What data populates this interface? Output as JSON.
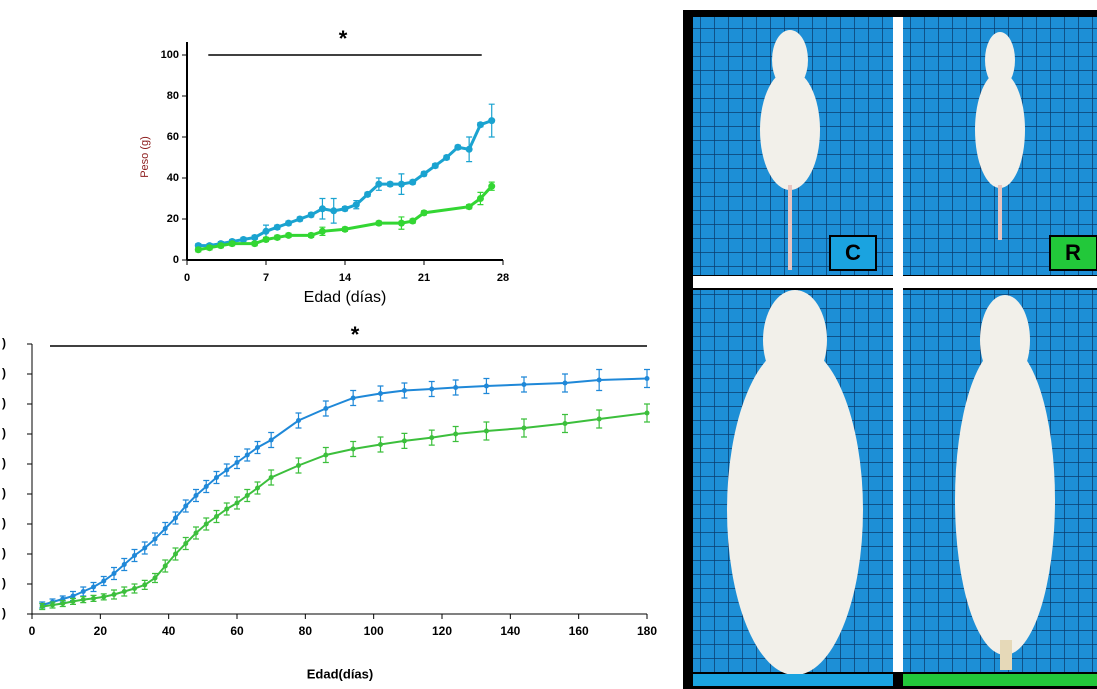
{
  "chart_data": [
    {
      "type": "line",
      "annotation": "*",
      "y_label": "Peso (g)",
      "x_label": "Edad (días)",
      "xlim": [
        0,
        28
      ],
      "xticks": [
        0,
        7,
        14,
        21,
        28
      ],
      "ylim": [
        0,
        100
      ],
      "yticks": [
        0,
        20,
        40,
        60,
        80,
        100
      ],
      "series": [
        {
          "color": "#1aa3d0",
          "x": [
            1,
            2,
            3,
            4,
            5,
            6,
            7,
            8,
            9,
            10,
            11,
            12,
            13,
            14,
            15,
            16,
            17,
            18,
            19,
            20,
            21,
            22,
            23,
            24,
            25,
            26,
            27
          ],
          "values": [
            7,
            7,
            8,
            9,
            10,
            11,
            14,
            16,
            18,
            20,
            22,
            25,
            24,
            25,
            27,
            32,
            37,
            37,
            37,
            38,
            42,
            46,
            50,
            55,
            54,
            66,
            68
          ],
          "errors": [
            1,
            1,
            1,
            1,
            1,
            1,
            3,
            1,
            1,
            1,
            1,
            5,
            6,
            1,
            2,
            1,
            3,
            1,
            5,
            1,
            1,
            1,
            1,
            1,
            6,
            1,
            8
          ]
        },
        {
          "color": "#33d633",
          "x": [
            1,
            2,
            3,
            4,
            6,
            7,
            8,
            9,
            11,
            12,
            14,
            17,
            19,
            20,
            21,
            25,
            26,
            27
          ],
          "values": [
            5,
            6,
            7,
            8,
            8,
            10,
            11,
            12,
            12,
            14,
            15,
            18,
            18,
            19,
            23,
            26,
            30,
            36
          ],
          "errors": [
            1,
            1,
            1,
            1,
            1,
            1,
            1,
            1,
            1,
            2,
            1,
            1,
            3,
            1,
            1,
            1,
            3,
            2
          ]
        }
      ]
    },
    {
      "type": "line",
      "annotation": "*",
      "x_label": "Edad(días)",
      "xlim": [
        0,
        180
      ],
      "xticks": [
        0,
        20,
        40,
        60,
        80,
        100,
        120,
        140,
        160,
        180
      ],
      "ylim": [
        0,
        9
      ],
      "yticks": [
        {
          "value": 0,
          "label": ")"
        },
        {
          "value": 1,
          "label": ")"
        },
        {
          "value": 2,
          "label": ")"
        },
        {
          "value": 3,
          "label": ")"
        },
        {
          "value": 4,
          "label": ")"
        },
        {
          "value": 5,
          "label": ")"
        },
        {
          "value": 6,
          "label": ")"
        },
        {
          "value": 7,
          "label": ")"
        },
        {
          "value": 8,
          "label": ")"
        },
        {
          "value": 9,
          "label": ")"
        }
      ],
      "series": [
        {
          "color": "#1f88d8",
          "x": [
            3,
            6,
            9,
            12,
            15,
            18,
            21,
            24,
            27,
            30,
            33,
            36,
            39,
            42,
            45,
            48,
            51,
            54,
            57,
            60,
            63,
            66,
            70,
            78,
            86,
            94,
            102,
            109,
            117,
            124,
            133,
            144,
            156,
            166,
            180
          ],
          "values": [
            0.3,
            0.4,
            0.5,
            0.6,
            0.75,
            0.9,
            1.1,
            1.35,
            1.65,
            1.95,
            2.2,
            2.5,
            2.85,
            3.2,
            3.6,
            3.95,
            4.25,
            4.55,
            4.8,
            5.05,
            5.3,
            5.55,
            5.8,
            6.45,
            6.85,
            7.2,
            7.35,
            7.45,
            7.5,
            7.55,
            7.6,
            7.65,
            7.7,
            7.8,
            7.85
          ],
          "errors": [
            0.1,
            0.1,
            0.1,
            0.15,
            0.15,
            0.15,
            0.15,
            0.2,
            0.2,
            0.2,
            0.2,
            0.2,
            0.2,
            0.2,
            0.2,
            0.2,
            0.2,
            0.2,
            0.2,
            0.2,
            0.2,
            0.2,
            0.25,
            0.25,
            0.25,
            0.25,
            0.25,
            0.25,
            0.25,
            0.25,
            0.25,
            0.25,
            0.3,
            0.35,
            0.3
          ]
        },
        {
          "color": "#3cbf3c",
          "x": [
            3,
            6,
            9,
            12,
            15,
            18,
            21,
            24,
            27,
            30,
            33,
            36,
            39,
            42,
            45,
            48,
            51,
            54,
            57,
            60,
            63,
            66,
            70,
            78,
            86,
            94,
            102,
            109,
            117,
            124,
            133,
            144,
            156,
            166,
            180
          ],
          "values": [
            0.25,
            0.3,
            0.35,
            0.42,
            0.48,
            0.52,
            0.57,
            0.65,
            0.75,
            0.85,
            0.97,
            1.2,
            1.6,
            2.0,
            2.35,
            2.7,
            3.0,
            3.25,
            3.5,
            3.7,
            3.95,
            4.2,
            4.55,
            4.95,
            5.3,
            5.5,
            5.65,
            5.77,
            5.88,
            6.0,
            6.1,
            6.2,
            6.35,
            6.5,
            6.7
          ],
          "errors": [
            0.1,
            0.1,
            0.1,
            0.1,
            0.1,
            0.1,
            0.1,
            0.15,
            0.15,
            0.15,
            0.15,
            0.15,
            0.2,
            0.2,
            0.2,
            0.2,
            0.2,
            0.2,
            0.2,
            0.2,
            0.2,
            0.2,
            0.25,
            0.25,
            0.25,
            0.25,
            0.25,
            0.25,
            0.25,
            0.25,
            0.3,
            0.3,
            0.3,
            0.3,
            0.3
          ]
        }
      ]
    }
  ],
  "photo_labels": [
    "C",
    "R"
  ]
}
